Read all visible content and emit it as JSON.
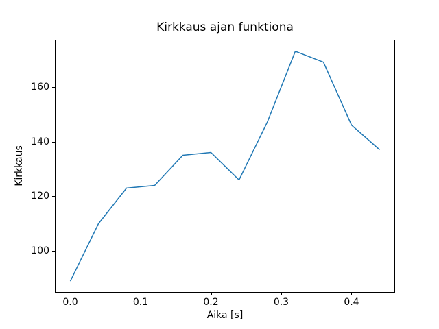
{
  "figure": {
    "background": "#ffffff"
  },
  "chart_data": {
    "type": "line",
    "title": "Kirkkaus ajan funktiona",
    "xlabel": "Aika [s]",
    "ylabel": "Kirkkaus",
    "x": [
      0.0,
      0.04,
      0.08,
      0.12,
      0.16,
      0.2,
      0.24,
      0.28,
      0.32,
      0.36,
      0.4,
      0.44
    ],
    "y": [
      89,
      110,
      123,
      124,
      135,
      136,
      126,
      147,
      173,
      169,
      146,
      137
    ],
    "series_name": "Kirkkaus",
    "xlim": [
      -0.022,
      0.462
    ],
    "ylim": [
      84.8,
      177.2
    ],
    "xticks": [
      0.0,
      0.1,
      0.2,
      0.3,
      0.4
    ],
    "xtick_labels": [
      "0.0",
      "0.1",
      "0.2",
      "0.3",
      "0.4"
    ],
    "yticks": [
      100,
      120,
      140,
      160
    ],
    "ytick_labels": [
      "100",
      "120",
      "140",
      "160"
    ],
    "grid": false,
    "legend": null,
    "line_color": "#1f77b4",
    "line_width": 1.5,
    "axes_color": "#000000",
    "plot_bg": "#ffffff"
  }
}
